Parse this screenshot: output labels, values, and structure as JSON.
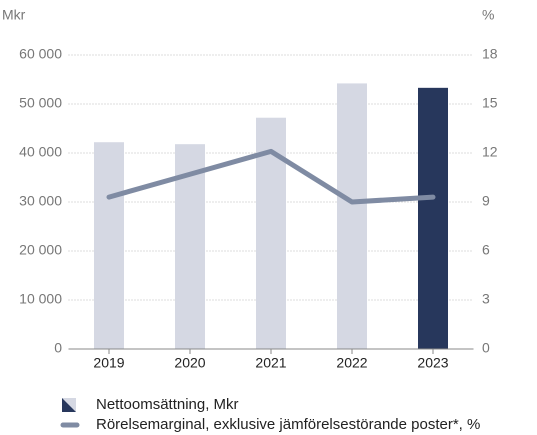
{
  "chart_data": {
    "type": "bar-line",
    "y_label": "Mkr",
    "y2_label": "%",
    "categories": [
      "2019",
      "2020",
      "2021",
      "2022",
      "2023"
    ],
    "series": [
      {
        "name": "Nettoomsättning, Mkr",
        "type": "bar",
        "colors": [
          "#d5d8e3",
          "#d5d8e3",
          "#d5d8e3",
          "#d5d8e3",
          "#27375c"
        ],
        "values": [
          42200,
          41800,
          47200,
          54200,
          53300
        ]
      },
      {
        "name": "Rörelsemarginal, exklusive jämförelsestörande poster*, %",
        "type": "line",
        "axis": "y2",
        "color": "#7f8ba3",
        "values": [
          9.3,
          10.7,
          12.1,
          9.0,
          9.3
        ]
      }
    ],
    "ylim": [
      0,
      60000
    ],
    "yticks": [
      0,
      {
        "value": 10000,
        "label": "10 000"
      },
      {
        "value": 20000,
        "label": "20 000"
      },
      {
        "value": 30000,
        "label": "30 000"
      },
      {
        "value": 40000,
        "label": "40 000"
      },
      {
        "value": 50000,
        "label": "50 000"
      },
      {
        "value": 60000,
        "label": "60 000"
      }
    ],
    "y2lim": [
      0,
      18
    ],
    "y2ticks": [
      0,
      3,
      6,
      9,
      12,
      15,
      18
    ],
    "grid": true
  }
}
